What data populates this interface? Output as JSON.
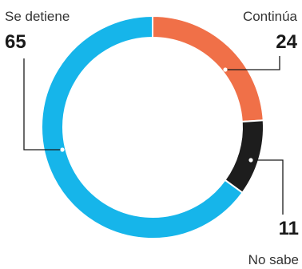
{
  "chart_data": {
    "type": "pie",
    "categories": [
      "Se detiene",
      "Continúa",
      "No sabe"
    ],
    "values": [
      65,
      24,
      11
    ],
    "colors": [
      "#16b5ea",
      "#f07048",
      "#1d1d1d"
    ]
  }
}
